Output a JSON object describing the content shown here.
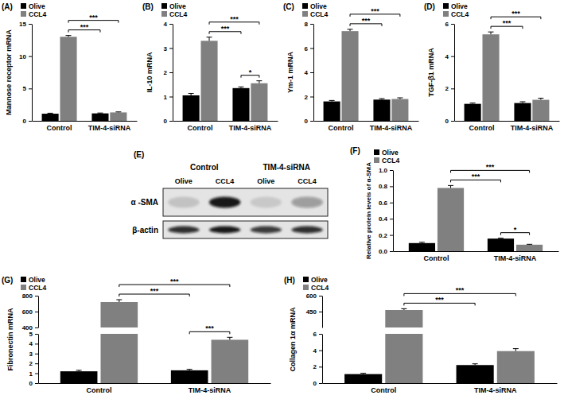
{
  "chart_data": [
    {
      "type": "bar",
      "title": "(A)",
      "y_label": "Mannose receptor mRNA",
      "categories": [
        "Control",
        "TIM-4-siRNA"
      ],
      "series": [
        {
          "name": "Olive",
          "color": "#000000",
          "values": [
            1.1,
            1.15
          ],
          "errors": [
            0.08,
            0.06
          ]
        },
        {
          "name": "CCL4",
          "color": "#808080",
          "values": [
            13.0,
            1.3
          ],
          "errors": [
            0.2,
            0.08
          ]
        }
      ],
      "ylim": [
        0,
        15
      ],
      "yticks": [
        0,
        5,
        10,
        15
      ],
      "legend": "top-left",
      "annotations": [
        {
          "text": "***",
          "from": {
            "category": "Control",
            "series": "CCL4"
          },
          "to": {
            "category": "TIM-4-siRNA",
            "series": "Olive"
          }
        },
        {
          "text": "***",
          "from": {
            "category": "Control",
            "series": "CCL4"
          },
          "to": {
            "category": "TIM-4-siRNA",
            "series": "CCL4"
          }
        }
      ]
    },
    {
      "type": "bar",
      "title": "(B)",
      "y_label": "IL-10 mRNA",
      "categories": [
        "Control",
        "TIM-4-siRNA"
      ],
      "series": [
        {
          "name": "Olive",
          "color": "#000000",
          "values": [
            1.05,
            1.35
          ],
          "errors": [
            0.08,
            0.05
          ]
        },
        {
          "name": "CCL4",
          "color": "#808080",
          "values": [
            3.3,
            1.55
          ],
          "errors": [
            0.15,
            0.1
          ]
        }
      ],
      "ylim": [
        0,
        4
      ],
      "yticks": [
        0,
        1,
        2,
        3,
        4
      ],
      "legend": "top-left",
      "annotations": [
        {
          "text": "***",
          "from": {
            "category": "Control",
            "series": "CCL4"
          },
          "to": {
            "category": "TIM-4-siRNA",
            "series": "Olive"
          }
        },
        {
          "text": "***",
          "from": {
            "category": "Control",
            "series": "CCL4"
          },
          "to": {
            "category": "TIM-4-siRNA",
            "series": "CCL4"
          }
        },
        {
          "text": "*",
          "from": {
            "category": "TIM-4-siRNA",
            "series": "Olive"
          },
          "to": {
            "category": "TIM-4-siRNA",
            "series": "CCL4"
          }
        }
      ]
    },
    {
      "type": "bar",
      "title": "(C)",
      "y_label": "Ym-1 mRNA",
      "categories": [
        "Control",
        "TIM-4-siRNA"
      ],
      "series": [
        {
          "name": "Olive",
          "color": "#000000",
          "values": [
            1.6,
            1.75
          ],
          "errors": [
            0.08,
            0.08
          ]
        },
        {
          "name": "CCL4",
          "color": "#808080",
          "values": [
            7.4,
            1.8
          ],
          "errors": [
            0.15,
            0.1
          ]
        }
      ],
      "ylim": [
        0,
        8
      ],
      "yticks": [
        0,
        2,
        4,
        6,
        8
      ],
      "legend": "top-left",
      "annotations": [
        {
          "text": "***",
          "from": {
            "category": "Control",
            "series": "CCL4"
          },
          "to": {
            "category": "TIM-4-siRNA",
            "series": "Olive"
          }
        },
        {
          "text": "***",
          "from": {
            "category": "Control",
            "series": "CCL4"
          },
          "to": {
            "category": "TIM-4-siRNA",
            "series": "CCL4"
          }
        }
      ]
    },
    {
      "type": "bar",
      "title": "(D)",
      "y_label": "TGF-β1 mRNA",
      "categories": [
        "Control",
        "TIM-4-siRNA"
      ],
      "series": [
        {
          "name": "Olive",
          "color": "#000000",
          "values": [
            1.05,
            1.1
          ],
          "errors": [
            0.05,
            0.08
          ]
        },
        {
          "name": "CCL4",
          "color": "#808080",
          "values": [
            5.35,
            1.3
          ],
          "errors": [
            0.15,
            0.1
          ]
        }
      ],
      "ylim": [
        0,
        6
      ],
      "yticks": [
        0,
        2,
        4,
        6
      ],
      "legend": "top-left",
      "annotations": [
        {
          "text": "***",
          "from": {
            "category": "Control",
            "series": "CCL4"
          },
          "to": {
            "category": "TIM-4-siRNA",
            "series": "Olive"
          }
        },
        {
          "text": "***",
          "from": {
            "category": "Control",
            "series": "CCL4"
          },
          "to": {
            "category": "TIM-4-siRNA",
            "series": "CCL4"
          }
        }
      ]
    },
    {
      "type": "blot",
      "title": "(E)",
      "groups": [
        "Control",
        "TIM-4-siRNA"
      ],
      "lanes": [
        "Olive",
        "CCL4",
        "Olive",
        "CCL4"
      ],
      "rows": [
        {
          "name": "α -SMA",
          "intensity": [
            0.15,
            0.95,
            0.12,
            0.35
          ]
        },
        {
          "name": "β-actin",
          "intensity": [
            0.85,
            0.95,
            0.8,
            0.85
          ]
        }
      ]
    },
    {
      "type": "bar",
      "title": "(F)",
      "y_label": "Relative protein levels of α-SMA",
      "categories": [
        "Control",
        "TIM-4-siRNA"
      ],
      "series": [
        {
          "name": "Olive",
          "color": "#000000",
          "values": [
            0.1,
            0.155
          ],
          "errors": [
            0.01,
            0.005
          ]
        },
        {
          "name": "CCL4",
          "color": "#808080",
          "values": [
            0.78,
            0.08
          ],
          "errors": [
            0.03,
            0.005
          ]
        }
      ],
      "ylim": [
        0,
        1
      ],
      "yticks": [
        {
          "value": 0,
          "label": "0.0"
        },
        0.2,
        0.4,
        0.6,
        0.8,
        {
          "value": 1,
          "label": "1.0"
        }
      ],
      "legend": "top-left",
      "annotations": [
        {
          "text": "***",
          "from": {
            "category": "Control",
            "series": "CCL4"
          },
          "to": {
            "category": "TIM-4-siRNA",
            "series": "Olive"
          }
        },
        {
          "text": "***",
          "from": {
            "category": "Control",
            "series": "CCL4"
          },
          "to": {
            "category": "TIM-4-siRNA",
            "series": "CCL4"
          }
        },
        {
          "text": "*",
          "from": {
            "category": "TIM-4-siRNA",
            "series": "Olive"
          },
          "to": {
            "category": "TIM-4-siRNA",
            "series": "CCL4"
          }
        }
      ]
    },
    {
      "type": "bar",
      "title": "(G)",
      "y_label": "Fibronectin mRNA",
      "categories": [
        "Control",
        "TIM-4-siRNA"
      ],
      "series": [
        {
          "name": "Olive",
          "color": "#000000",
          "values": [
            1.2,
            1.3
          ],
          "errors": [
            0.1,
            0.1
          ]
        },
        {
          "name": "CCL4",
          "color": "#808080",
          "values": [
            720,
            4.4
          ],
          "errors": [
            30,
            0.25
          ]
        }
      ],
      "segments": [
        {
          "ylim": [
            0,
            5
          ],
          "yticks": [
            0,
            1,
            2,
            3,
            4,
            5
          ]
        },
        {
          "ylim": [
            400,
            800
          ],
          "yticks": [
            400,
            600,
            800
          ]
        }
      ],
      "legend": "top-left",
      "annotations": [
        {
          "text": "***",
          "from": {
            "category": "Control",
            "series": "CCL4"
          },
          "to": {
            "category": "TIM-4-siRNA",
            "series": "Olive"
          }
        },
        {
          "text": "***",
          "from": {
            "category": "Control",
            "series": "CCL4"
          },
          "to": {
            "category": "TIM-4-siRNA",
            "series": "CCL4"
          }
        },
        {
          "text": "***",
          "from": {
            "category": "TIM-4-siRNA",
            "series": "Olive"
          },
          "to": {
            "category": "TIM-4-siRNA",
            "series": "CCL4"
          }
        }
      ]
    },
    {
      "type": "bar",
      "title": "(H)",
      "y_label": "Collagen 1α mRNA",
      "categories": [
        "Control",
        "TIM-4-siRNA"
      ],
      "series": [
        {
          "name": "Olive",
          "color": "#000000",
          "values": [
            1.1,
            2.2
          ],
          "errors": [
            0.1,
            0.15
          ]
        },
        {
          "name": "CCL4",
          "color": "#808080",
          "values": [
            465,
            3.9
          ],
          "errors": [
            12,
            0.3
          ]
        }
      ],
      "segments": [
        {
          "ylim": [
            0,
            6
          ],
          "yticks": [
            0,
            2,
            4,
            6
          ]
        },
        {
          "ylim": [
            300,
            600
          ],
          "yticks": [
            450,
            600
          ]
        }
      ],
      "legend": "top-left",
      "annotations": [
        {
          "text": "***",
          "from": {
            "category": "Control",
            "series": "CCL4"
          },
          "to": {
            "category": "TIM-4-siRNA",
            "series": "Olive"
          }
        },
        {
          "text": "***",
          "from": {
            "category": "Control",
            "series": "CCL4"
          },
          "to": {
            "category": "TIM-4-siRNA",
            "series": "CCL4"
          }
        }
      ]
    }
  ]
}
